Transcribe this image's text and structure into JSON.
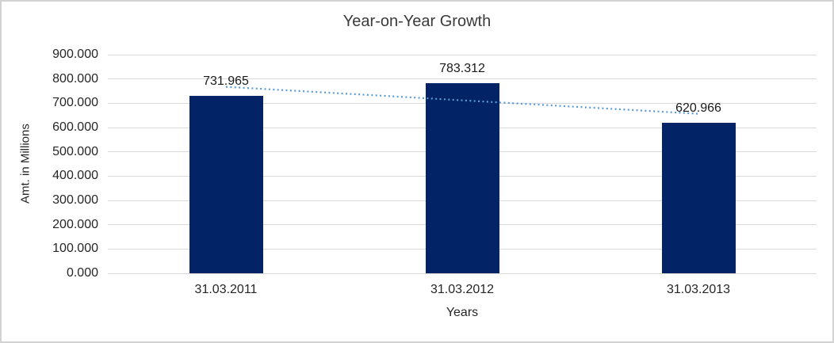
{
  "chart_data": {
    "type": "bar",
    "title": "Year-on-Year Growth",
    "categories": [
      "31.03.2011",
      "31.03.2012",
      "31.03.2013"
    ],
    "values": [
      731.965,
      783.312,
      620.966
    ],
    "value_labels": [
      "731.965",
      "783.312",
      "620.966"
    ],
    "xlabel": "Years",
    "ylabel": "Amt. in Millions",
    "ylim": [
      0,
      900
    ],
    "y_tick_labels": [
      "0.000",
      "100.000",
      "200.000",
      "300.000",
      "400.000",
      "500.000",
      "600.000",
      "700.000",
      "800.000",
      "900.000"
    ],
    "grid": true,
    "legend": false,
    "colors": {
      "bar": "#022365",
      "gridline": "#d9d9d9",
      "trendline": "#5b9bd5",
      "title_text": "#3b3b3b",
      "axis_text": "#262626",
      "frame_border": "#d2d2d2"
    },
    "trendline": {
      "type": "linear",
      "style": "dotted"
    }
  }
}
